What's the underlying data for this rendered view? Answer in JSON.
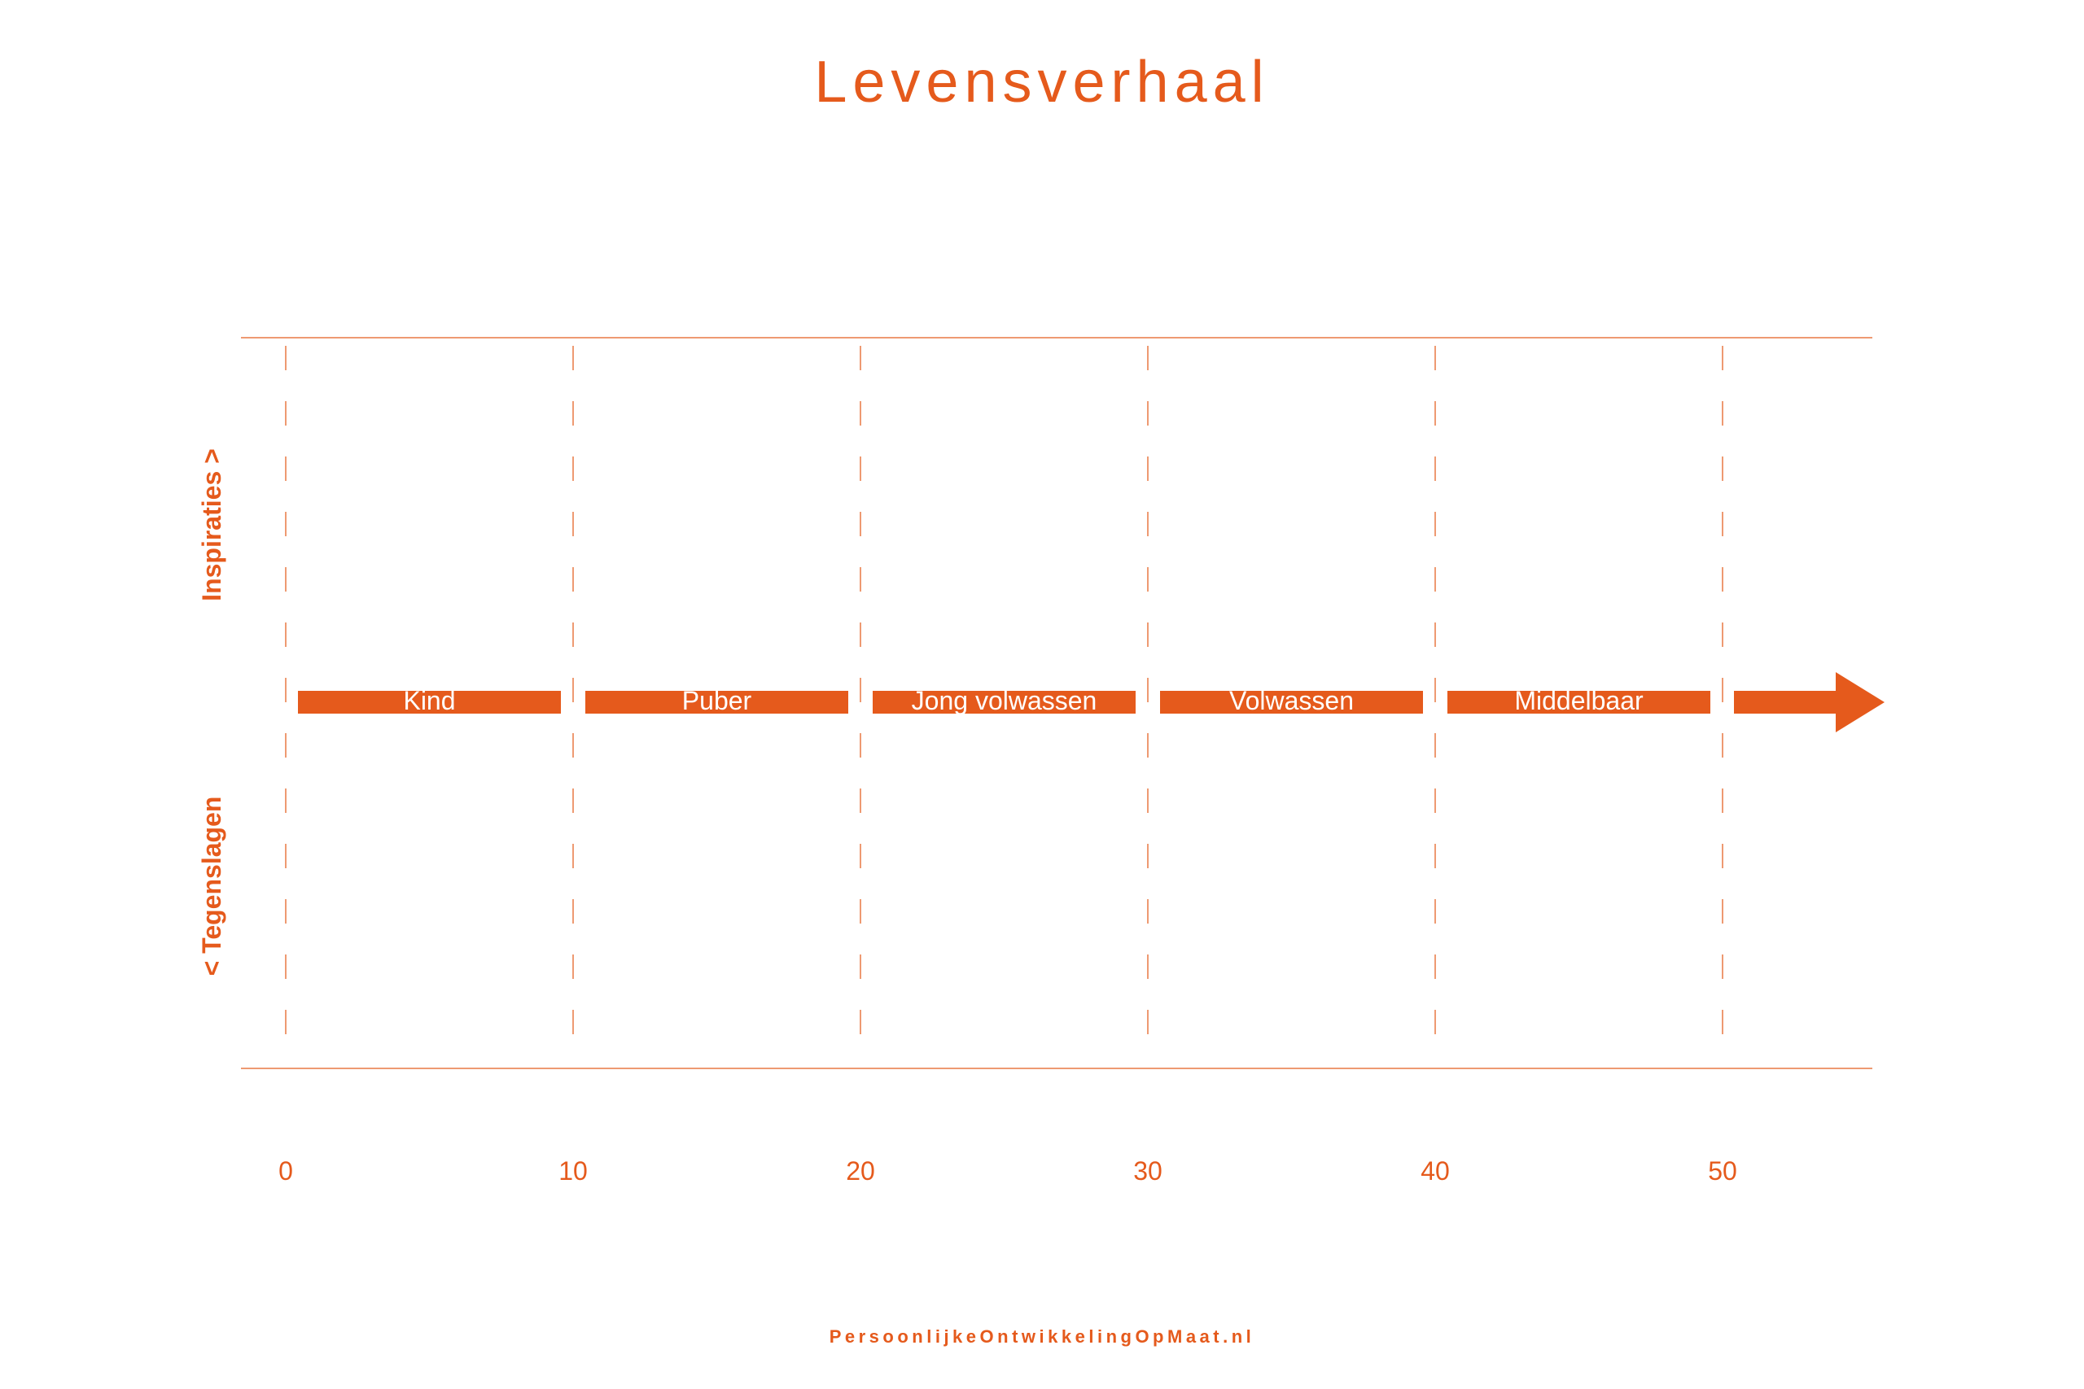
{
  "title": "Levensverhaal",
  "footer": "PersoonlijkeOntwikkelingOpMaat.nl",
  "colors": {
    "accent": "#e55a1c",
    "line": "#ee9a72",
    "background": "#ffffff"
  },
  "side_labels": {
    "upper": "Inspiraties  >",
    "lower": "<  Tegenslagen"
  },
  "timeline": {
    "ticks": [
      "0",
      "10",
      "20",
      "30",
      "40",
      "50"
    ],
    "phases": [
      "Kind",
      "Puber",
      "Jong volwassen",
      "Volwassen",
      "Middelbaar"
    ],
    "arrow_icon": "arrow-right-icon"
  }
}
